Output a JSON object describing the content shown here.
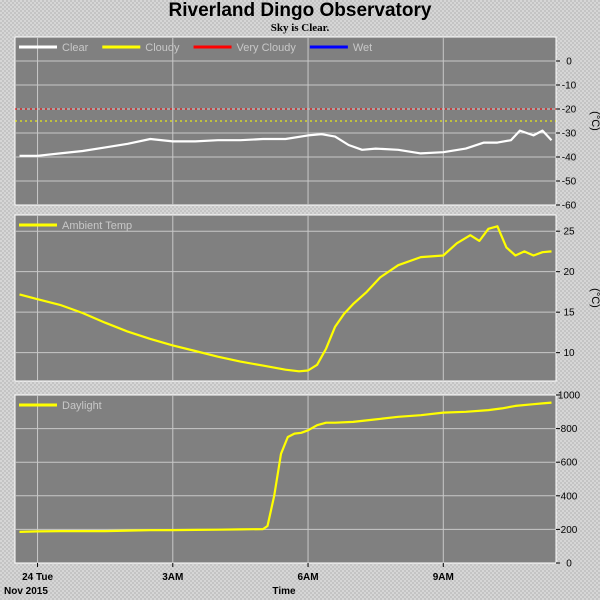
{
  "header": {
    "title": "Riverland Dingo Observatory",
    "subtitle": "Sky is Clear."
  },
  "footer": {
    "date_label": "Nov 2015",
    "axis_label": "Time"
  },
  "colors": {
    "plot_bg": "#808080",
    "grid": "#c8c8c8",
    "clear": "#ffffff",
    "cloudy": "#ffff00",
    "very_cloudy": "#ff0000",
    "wet": "#0000ff",
    "legend_text": "#c8c8c8"
  },
  "chart_data": [
    {
      "type": "line",
      "name": "sky-temperature",
      "ylabel": "(°C)",
      "ylim": [
        -60,
        10
      ],
      "yticks": [
        0,
        -10,
        -20,
        -30,
        -40,
        -50,
        -60
      ],
      "legend": [
        {
          "label": "Clear",
          "color": "#ffffff"
        },
        {
          "label": "Cloudy",
          "color": "#ffff00"
        },
        {
          "label": "Very Cloudy",
          "color": "#ff0000"
        },
        {
          "label": "Wet",
          "color": "#0000ff"
        }
      ],
      "thresholds": [
        {
          "value": -20,
          "color": "#ff0000"
        },
        {
          "value": -25,
          "color": "#ffff00"
        }
      ],
      "series": [
        {
          "name": "Clear",
          "color": "#ffffff",
          "x": [
            -0.4,
            0.0,
            0.5,
            1.0,
            1.5,
            2.0,
            2.5,
            3.0,
            3.5,
            4.0,
            4.5,
            5.0,
            5.5,
            6.0,
            6.3,
            6.6,
            6.9,
            7.2,
            7.5,
            8.0,
            8.5,
            9.0,
            9.5,
            9.9,
            10.2,
            10.5,
            10.7,
            11.0,
            11.2,
            11.4
          ],
          "y": [
            -39.5,
            -39.5,
            -38.5,
            -37.5,
            -36,
            -34.5,
            -32.5,
            -33.5,
            -33.5,
            -33,
            -33,
            -32.5,
            -32.5,
            -31,
            -30.5,
            -31.5,
            -35,
            -37,
            -36.5,
            -37,
            -38.5,
            -38,
            -36.5,
            -34,
            -34,
            -33,
            -29,
            -31,
            -29,
            -33
          ]
        }
      ]
    },
    {
      "type": "line",
      "name": "ambient-temperature",
      "ylabel": "(°C)",
      "ylim": [
        6.5,
        27
      ],
      "yticks": [
        10,
        15,
        20,
        25
      ],
      "legend": [
        {
          "label": "Ambient Temp",
          "color": "#ffff00"
        }
      ],
      "series": [
        {
          "name": "Ambient Temp",
          "color": "#ffff00",
          "x": [
            -0.4,
            0.0,
            0.5,
            1.0,
            1.5,
            2.0,
            2.5,
            3.0,
            3.5,
            4.0,
            4.5,
            5.0,
            5.5,
            5.8,
            6.0,
            6.2,
            6.4,
            6.6,
            6.8,
            7.0,
            7.3,
            7.6,
            8.0,
            8.5,
            9.0,
            9.3,
            9.6,
            9.8,
            10.0,
            10.2,
            10.4,
            10.6,
            10.8,
            11.0,
            11.2,
            11.4
          ],
          "y": [
            17.2,
            16.6,
            15.9,
            14.9,
            13.7,
            12.6,
            11.7,
            10.9,
            10.2,
            9.5,
            8.9,
            8.4,
            7.9,
            7.7,
            7.8,
            8.5,
            10.5,
            13.2,
            14.8,
            16.0,
            17.5,
            19.3,
            20.8,
            21.8,
            22.0,
            23.5,
            24.5,
            23.8,
            25.3,
            25.6,
            23.0,
            22.0,
            22.5,
            22.0,
            22.4,
            22.5
          ]
        }
      ]
    },
    {
      "type": "line",
      "name": "daylight",
      "ylabel": "",
      "ylim": [
        0,
        1000
      ],
      "yticks": [
        0,
        200,
        400,
        600,
        800,
        1000
      ],
      "legend": [
        {
          "label": "Daylight",
          "color": "#ffff00"
        }
      ],
      "series": [
        {
          "name": "Daylight",
          "color": "#ffff00",
          "x": [
            -0.4,
            0.0,
            0.5,
            1.0,
            1.5,
            2.0,
            2.5,
            3.0,
            3.5,
            4.0,
            4.5,
            5.0,
            5.1,
            5.25,
            5.4,
            5.55,
            5.7,
            5.85,
            6.0,
            6.2,
            6.4,
            6.6,
            7.0,
            7.5,
            8.0,
            8.5,
            9.0,
            9.5,
            10.0,
            10.3,
            10.6,
            11.0,
            11.2,
            11.4
          ],
          "y": [
            185,
            188,
            190,
            190,
            190,
            193,
            195,
            196,
            197,
            198,
            200,
            202,
            220,
            400,
            650,
            750,
            770,
            775,
            790,
            820,
            835,
            835,
            840,
            855,
            870,
            880,
            895,
            900,
            910,
            920,
            935,
            945,
            950,
            955
          ]
        }
      ]
    }
  ],
  "x_axis": {
    "unit": "hours since midnight",
    "range": [
      -0.5,
      11.5
    ],
    "ticks": [
      {
        "value": 0,
        "label": "24 Tue"
      },
      {
        "value": 3,
        "label": "3AM"
      },
      {
        "value": 6,
        "label": "6AM"
      },
      {
        "value": 9,
        "label": "9AM"
      }
    ]
  }
}
